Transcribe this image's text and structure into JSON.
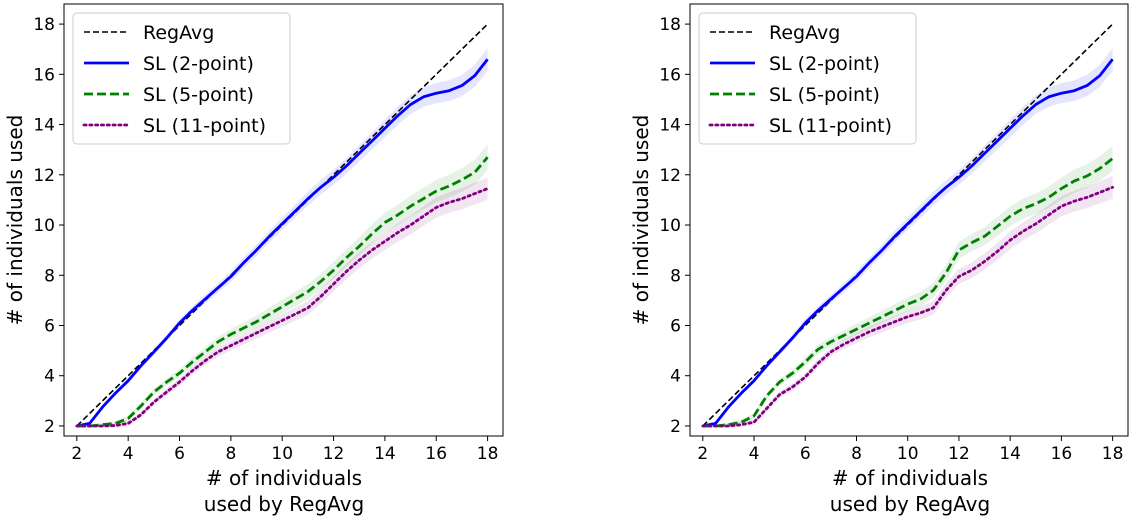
{
  "chart_data": [
    {
      "type": "line",
      "xlabel_line1": "# of individuals",
      "xlabel_line2": "used by RegAvg",
      "ylabel": "# of individuals used",
      "xlim": [
        1.5,
        18.6
      ],
      "ylim": [
        1.6,
        18.8
      ],
      "xticks": [
        2,
        4,
        6,
        8,
        10,
        12,
        14,
        16,
        18
      ],
      "yticks": [
        2,
        4,
        6,
        8,
        10,
        12,
        14,
        16,
        18
      ],
      "grid": false,
      "legend_position": "top-left",
      "series": [
        {
          "name": "RegAvg",
          "style": "dashed",
          "color": "#000000",
          "band": 0,
          "x": [
            2,
            18
          ],
          "y": [
            2,
            18
          ]
        },
        {
          "name": "SL (2-point)",
          "style": "solid",
          "color": "#0000ff",
          "band": 0.4,
          "x": [
            2,
            2.5,
            3,
            3.5,
            4,
            4.5,
            5,
            5.5,
            6,
            6.5,
            7,
            7.5,
            8,
            8.5,
            9,
            9.5,
            10,
            10.5,
            11,
            11.5,
            12,
            12.5,
            13,
            13.5,
            14,
            14.5,
            15,
            15.5,
            16,
            16.5,
            17,
            17.5,
            18
          ],
          "y": [
            2.0,
            2.1,
            2.75,
            3.3,
            3.8,
            4.4,
            4.95,
            5.5,
            6.1,
            6.6,
            7.05,
            7.5,
            7.95,
            8.5,
            9.0,
            9.55,
            10.05,
            10.55,
            11.05,
            11.5,
            11.9,
            12.35,
            12.85,
            13.35,
            13.85,
            14.35,
            14.8,
            15.1,
            15.25,
            15.35,
            15.55,
            15.95,
            16.6
          ]
        },
        {
          "name": "SL (5-point)",
          "style": "dashed",
          "color": "#008000",
          "band": 0.45,
          "x": [
            2,
            2.5,
            3,
            3.5,
            4,
            4.5,
            5,
            5.5,
            6,
            6.5,
            7,
            7.5,
            8,
            8.5,
            9,
            9.5,
            10,
            10.5,
            11,
            11.5,
            12,
            12.5,
            13,
            13.5,
            14,
            14.5,
            15,
            15.5,
            16,
            16.5,
            17,
            17.5,
            18
          ],
          "y": [
            2.0,
            2.0,
            2.05,
            2.1,
            2.3,
            2.8,
            3.35,
            3.75,
            4.1,
            4.55,
            4.95,
            5.35,
            5.65,
            5.9,
            6.15,
            6.45,
            6.75,
            7.05,
            7.35,
            7.75,
            8.2,
            8.7,
            9.15,
            9.65,
            10.1,
            10.4,
            10.75,
            11.05,
            11.35,
            11.55,
            11.8,
            12.1,
            12.7
          ]
        },
        {
          "name": "SL (11-point)",
          "style": "dotted",
          "color": "#800080",
          "band": 0.4,
          "x": [
            2,
            2.5,
            3,
            3.5,
            4,
            4.5,
            5,
            5.5,
            6,
            6.5,
            7,
            7.5,
            8,
            8.5,
            9,
            9.5,
            10,
            10.5,
            11,
            11.5,
            12,
            12.5,
            13,
            13.5,
            14,
            14.5,
            15,
            15.5,
            16,
            16.5,
            17,
            17.5,
            18
          ],
          "y": [
            2.0,
            2.0,
            2.0,
            2.02,
            2.1,
            2.45,
            2.95,
            3.35,
            3.75,
            4.2,
            4.6,
            4.95,
            5.2,
            5.45,
            5.7,
            5.95,
            6.2,
            6.45,
            6.7,
            7.15,
            7.65,
            8.15,
            8.6,
            9.0,
            9.35,
            9.7,
            10.0,
            10.35,
            10.7,
            10.9,
            11.05,
            11.25,
            11.45
          ]
        }
      ]
    },
    {
      "type": "line",
      "xlabel_line1": "# of individuals",
      "xlabel_line2": "used by RegAvg",
      "ylabel": "# of individuals used",
      "xlim": [
        1.5,
        18.6
      ],
      "ylim": [
        1.6,
        18.8
      ],
      "xticks": [
        2,
        4,
        6,
        8,
        10,
        12,
        14,
        16,
        18
      ],
      "yticks": [
        2,
        4,
        6,
        8,
        10,
        12,
        14,
        16,
        18
      ],
      "grid": false,
      "legend_position": "top-left",
      "series": [
        {
          "name": "RegAvg",
          "style": "dashed",
          "color": "#000000",
          "band": 0,
          "x": [
            2,
            18
          ],
          "y": [
            2,
            18
          ]
        },
        {
          "name": "SL (2-point)",
          "style": "solid",
          "color": "#0000ff",
          "band": 0.4,
          "x": [
            2,
            2.5,
            3,
            3.5,
            4,
            4.5,
            5,
            5.5,
            6,
            6.5,
            7,
            7.5,
            8,
            8.5,
            9,
            9.5,
            10,
            10.5,
            11,
            11.5,
            12,
            12.5,
            13,
            13.5,
            14,
            14.5,
            15,
            15.5,
            16,
            16.5,
            17,
            17.5,
            18
          ],
          "y": [
            2.0,
            2.1,
            2.75,
            3.3,
            3.8,
            4.4,
            4.95,
            5.5,
            6.1,
            6.6,
            7.05,
            7.5,
            7.95,
            8.5,
            9.0,
            9.55,
            10.05,
            10.55,
            11.05,
            11.5,
            11.9,
            12.35,
            12.85,
            13.35,
            13.85,
            14.35,
            14.8,
            15.1,
            15.25,
            15.35,
            15.55,
            15.95,
            16.6
          ]
        },
        {
          "name": "SL (5-point)",
          "style": "dashed",
          "color": "#008000",
          "band": 0.45,
          "x": [
            2,
            2.5,
            3,
            3.5,
            4,
            4.5,
            5,
            5.5,
            6,
            6.5,
            7,
            7.5,
            8,
            8.5,
            9,
            9.5,
            10,
            10.5,
            11,
            11.5,
            12,
            12.5,
            13,
            13.5,
            14,
            14.5,
            15,
            15.5,
            16,
            16.5,
            17,
            17.5,
            18
          ],
          "y": [
            2.0,
            2.0,
            2.05,
            2.15,
            2.4,
            3.2,
            3.75,
            4.1,
            4.55,
            5.05,
            5.35,
            5.6,
            5.85,
            6.1,
            6.35,
            6.6,
            6.85,
            7.05,
            7.4,
            8.1,
            9.0,
            9.3,
            9.55,
            9.95,
            10.35,
            10.65,
            10.85,
            11.1,
            11.45,
            11.75,
            11.95,
            12.25,
            12.65
          ]
        },
        {
          "name": "SL (11-point)",
          "style": "dotted",
          "color": "#800080",
          "band": 0.4,
          "x": [
            2,
            2.5,
            3,
            3.5,
            4,
            4.5,
            5,
            5.5,
            6,
            6.5,
            7,
            7.5,
            8,
            8.5,
            9,
            9.5,
            10,
            10.5,
            11,
            11.5,
            12,
            12.5,
            13,
            13.5,
            14,
            14.5,
            15,
            15.5,
            16,
            16.5,
            17,
            17.5,
            18
          ],
          "y": [
            2.0,
            2.0,
            2.0,
            2.05,
            2.15,
            2.7,
            3.25,
            3.55,
            3.95,
            4.5,
            4.95,
            5.25,
            5.5,
            5.75,
            5.95,
            6.15,
            6.35,
            6.5,
            6.7,
            7.4,
            7.95,
            8.2,
            8.55,
            8.95,
            9.4,
            9.75,
            10.05,
            10.4,
            10.75,
            10.95,
            11.1,
            11.3,
            11.5
          ]
        }
      ]
    }
  ]
}
